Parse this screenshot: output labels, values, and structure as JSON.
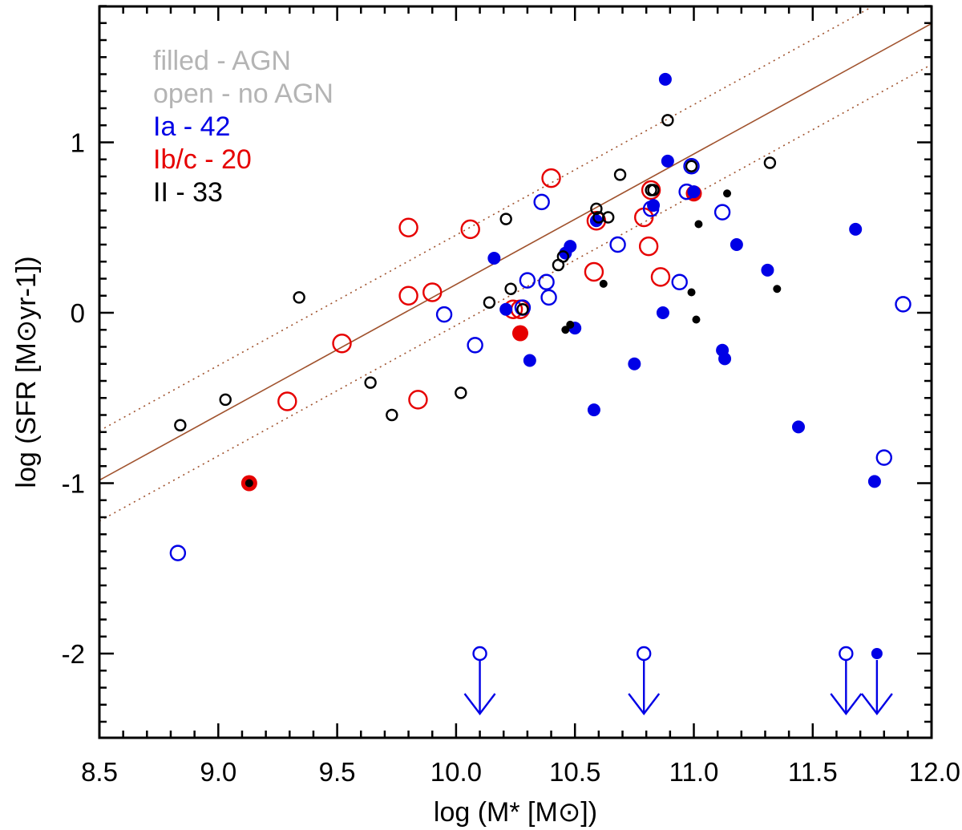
{
  "chart_data": {
    "type": "scatter",
    "title": "",
    "xlabel": "log (M* [M⊙])",
    "ylabel": "log (SFR [M⊙yr-1])",
    "xlim": [
      8.5,
      12.0
    ],
    "ylim": [
      -2.5,
      1.8
    ],
    "x_ticks": [
      "8.5",
      "9.0",
      "9.5",
      "10.0",
      "10.5",
      "11.0",
      "11.5",
      "12.0"
    ],
    "y_ticks": [
      "-2",
      "-1",
      "0",
      "1"
    ],
    "grid": false,
    "legend_placement": "top-left",
    "legend": [
      {
        "text": "filled - AGN",
        "color": "#b4b4b4"
      },
      {
        "text": "open - no AGN",
        "color": "#b4b4b4"
      },
      {
        "text": "Ia - 42",
        "color": "#0000e6"
      },
      {
        "text": "Ib/c - 20",
        "color": "#e60000"
      },
      {
        "text": "II - 33",
        "color": "#000000"
      }
    ],
    "relation": {
      "main": {
        "slope": 0.7656,
        "intercept": -7.49,
        "color": "#a0522d",
        "style": "solid"
      },
      "upper": {
        "slope": 0.7656,
        "intercept": -7.2,
        "color": "#a0522d",
        "style": "dotted"
      },
      "lower": {
        "slope": 0.7656,
        "intercept": -7.73,
        "color": "#a0522d",
        "style": "dotted"
      }
    },
    "series": [
      {
        "name": "Ia - 42",
        "color": "#0000e6",
        "points": [
          {
            "x": 8.83,
            "y": -1.41,
            "agn": false
          },
          {
            "x": 9.95,
            "y": -0.01,
            "agn": false
          },
          {
            "x": 10.08,
            "y": -0.19,
            "agn": false
          },
          {
            "x": 10.28,
            "y": 0.03,
            "agn": false
          },
          {
            "x": 10.3,
            "y": 0.19,
            "agn": false
          },
          {
            "x": 10.36,
            "y": 0.65,
            "agn": false
          },
          {
            "x": 10.38,
            "y": 0.18,
            "agn": false
          },
          {
            "x": 10.39,
            "y": 0.09,
            "agn": false
          },
          {
            "x": 10.68,
            "y": 0.4,
            "agn": false
          },
          {
            "x": 10.82,
            "y": 0.61,
            "agn": false
          },
          {
            "x": 10.94,
            "y": 0.18,
            "agn": false
          },
          {
            "x": 10.97,
            "y": 0.71,
            "agn": false
          },
          {
            "x": 10.99,
            "y": 0.86,
            "agn": false
          },
          {
            "x": 11.12,
            "y": 0.59,
            "agn": false
          },
          {
            "x": 11.88,
            "y": 0.05,
            "agn": false
          },
          {
            "x": 11.8,
            "y": -0.85,
            "agn": false
          },
          {
            "x": 10.88,
            "y": 1.37,
            "agn": true
          },
          {
            "x": 10.89,
            "y": 0.89,
            "agn": true
          },
          {
            "x": 10.16,
            "y": 0.32,
            "agn": true
          },
          {
            "x": 10.21,
            "y": 0.02,
            "agn": true
          },
          {
            "x": 10.31,
            "y": -0.28,
            "agn": true
          },
          {
            "x": 10.46,
            "y": 0.35,
            "agn": true
          },
          {
            "x": 10.48,
            "y": 0.39,
            "agn": true
          },
          {
            "x": 10.5,
            "y": -0.09,
            "agn": true
          },
          {
            "x": 10.58,
            "y": -0.57,
            "agn": true
          },
          {
            "x": 10.59,
            "y": 0.54,
            "agn": true
          },
          {
            "x": 10.75,
            "y": -0.3,
            "agn": true
          },
          {
            "x": 10.83,
            "y": 0.63,
            "agn": true
          },
          {
            "x": 10.87,
            "y": 0.0,
            "agn": true
          },
          {
            "x": 11.0,
            "y": 0.71,
            "agn": true
          },
          {
            "x": 11.12,
            "y": -0.22,
            "agn": true
          },
          {
            "x": 11.13,
            "y": -0.27,
            "agn": true
          },
          {
            "x": 11.18,
            "y": 0.4,
            "agn": true
          },
          {
            "x": 11.31,
            "y": 0.25,
            "agn": true
          },
          {
            "x": 11.44,
            "y": -0.67,
            "agn": true
          },
          {
            "x": 11.68,
            "y": 0.49,
            "agn": true
          },
          {
            "x": 11.76,
            "y": -0.99,
            "agn": true
          }
        ],
        "upper_limits": [
          {
            "x": 10.1,
            "y": -2.0,
            "agn": false
          },
          {
            "x": 10.79,
            "y": -2.0,
            "agn": false
          },
          {
            "x": 11.64,
            "y": -2.0,
            "agn": false
          },
          {
            "x": 11.77,
            "y": -2.0,
            "agn": true
          }
        ]
      },
      {
        "name": "Ib/c - 20",
        "color": "#e60000",
        "points": [
          {
            "x": 9.13,
            "y": -1.0,
            "agn": true
          },
          {
            "x": 9.29,
            "y": -0.52,
            "agn": false
          },
          {
            "x": 9.52,
            "y": -0.18,
            "agn": false
          },
          {
            "x": 9.8,
            "y": 0.5,
            "agn": false
          },
          {
            "x": 9.8,
            "y": 0.1,
            "agn": false
          },
          {
            "x": 9.84,
            "y": -0.51,
            "agn": false
          },
          {
            "x": 9.9,
            "y": 0.12,
            "agn": false
          },
          {
            "x": 10.06,
            "y": 0.49,
            "agn": false
          },
          {
            "x": 10.24,
            "y": 0.02,
            "agn": false
          },
          {
            "x": 10.27,
            "y": 0.02,
            "agn": false
          },
          {
            "x": 10.27,
            "y": -0.12,
            "agn": true
          },
          {
            "x": 10.4,
            "y": 0.79,
            "agn": false
          },
          {
            "x": 10.58,
            "y": 0.24,
            "agn": false
          },
          {
            "x": 10.59,
            "y": 0.54,
            "agn": false
          },
          {
            "x": 10.79,
            "y": 0.56,
            "agn": false
          },
          {
            "x": 10.81,
            "y": 0.39,
            "agn": false
          },
          {
            "x": 10.82,
            "y": 0.72,
            "agn": false
          },
          {
            "x": 10.86,
            "y": 0.21,
            "agn": false
          },
          {
            "x": 11.0,
            "y": 0.7,
            "agn": true
          }
        ]
      },
      {
        "name": "II - 33",
        "color": "#000000",
        "points": [
          {
            "x": 8.84,
            "y": -0.66,
            "agn": false
          },
          {
            "x": 9.03,
            "y": -0.51,
            "agn": false
          },
          {
            "x": 9.13,
            "y": -1.0,
            "agn": true
          },
          {
            "x": 9.34,
            "y": 0.09,
            "agn": false
          },
          {
            "x": 9.64,
            "y": -0.41,
            "agn": false
          },
          {
            "x": 9.73,
            "y": -0.6,
            "agn": false
          },
          {
            "x": 10.02,
            "y": -0.47,
            "agn": false
          },
          {
            "x": 10.14,
            "y": 0.06,
            "agn": false
          },
          {
            "x": 10.21,
            "y": 0.55,
            "agn": false
          },
          {
            "x": 10.23,
            "y": 0.14,
            "agn": false
          },
          {
            "x": 10.28,
            "y": 0.02,
            "agn": false
          },
          {
            "x": 10.43,
            "y": 0.28,
            "agn": false
          },
          {
            "x": 10.45,
            "y": 0.33,
            "agn": false
          },
          {
            "x": 10.46,
            "y": -0.1,
            "agn": true
          },
          {
            "x": 10.48,
            "y": -0.07,
            "agn": true
          },
          {
            "x": 10.59,
            "y": 0.61,
            "agn": false
          },
          {
            "x": 10.6,
            "y": 0.56,
            "agn": false
          },
          {
            "x": 10.62,
            "y": 0.17,
            "agn": true
          },
          {
            "x": 10.64,
            "y": 0.56,
            "agn": false
          },
          {
            "x": 10.69,
            "y": 0.81,
            "agn": false
          },
          {
            "x": 10.82,
            "y": 0.72,
            "agn": false
          },
          {
            "x": 10.83,
            "y": 0.72,
            "agn": false
          },
          {
            "x": 10.89,
            "y": 1.13,
            "agn": false
          },
          {
            "x": 10.99,
            "y": 0.86,
            "agn": false
          },
          {
            "x": 10.99,
            "y": 0.12,
            "agn": true
          },
          {
            "x": 11.01,
            "y": -0.04,
            "agn": true
          },
          {
            "x": 11.02,
            "y": 0.52,
            "agn": true
          },
          {
            "x": 11.14,
            "y": 0.7,
            "agn": true
          },
          {
            "x": 11.32,
            "y": 0.88,
            "agn": false
          },
          {
            "x": 11.35,
            "y": 0.14,
            "agn": true
          }
        ]
      }
    ]
  }
}
